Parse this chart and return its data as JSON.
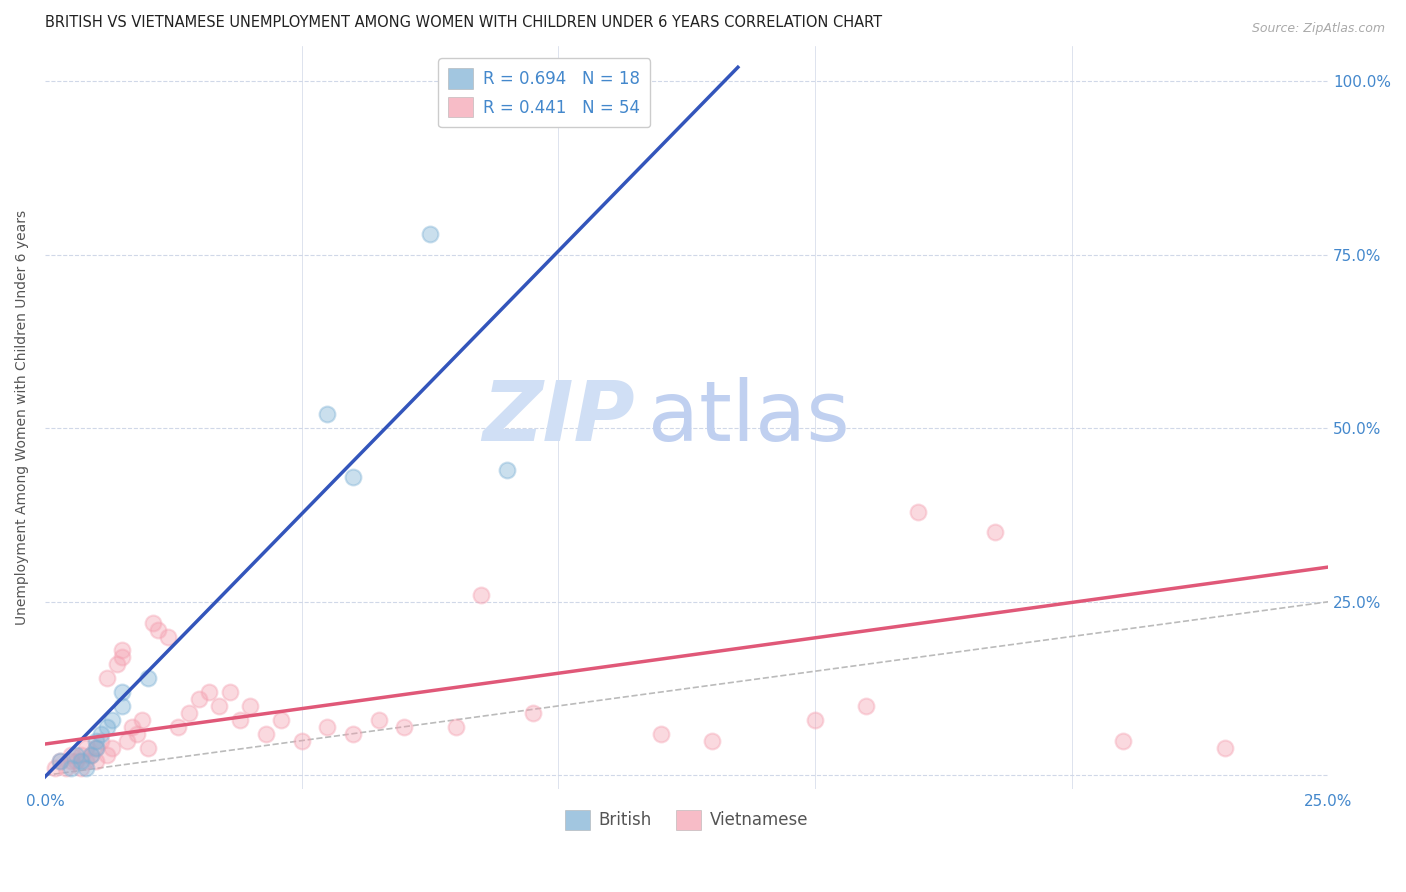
{
  "title": "BRITISH VS VIETNAMESE UNEMPLOYMENT AMONG WOMEN WITH CHILDREN UNDER 6 YEARS CORRELATION CHART",
  "source": "Source: ZipAtlas.com",
  "ylabel": "Unemployment Among Women with Children Under 6 years",
  "xlabel": "",
  "xlim": [
    0.0,
    0.25
  ],
  "ylim": [
    -0.02,
    1.05
  ],
  "xticks": [
    0.0,
    0.05,
    0.1,
    0.15,
    0.2,
    0.25
  ],
  "xticklabels": [
    "0.0%",
    "",
    "",
    "",
    "",
    "25.0%"
  ],
  "ytick_positions": [
    0.0,
    0.25,
    0.5,
    0.75,
    1.0
  ],
  "yticklabels_right": [
    "",
    "25.0%",
    "50.0%",
    "75.0%",
    "100.0%"
  ],
  "british_color": "#7bafd4",
  "vietnamese_color": "#f4a0b0",
  "british_R": 0.694,
  "british_N": 18,
  "vietnamese_R": 0.441,
  "vietnamese_N": 54,
  "diagonal_color": "#bbbbbb",
  "british_line_color": "#3355bb",
  "vietnamese_line_color": "#e05878",
  "british_line_x0": -0.005,
  "british_line_y0": -0.04,
  "british_line_x1": 0.135,
  "british_line_y1": 1.02,
  "vietnamese_line_x0": -0.005,
  "vietnamese_line_y0": 0.04,
  "vietnamese_line_x1": 0.25,
  "vietnamese_line_y1": 0.3,
  "british_scatter_x": [
    0.003,
    0.005,
    0.006,
    0.007,
    0.008,
    0.009,
    0.01,
    0.01,
    0.011,
    0.012,
    0.013,
    0.015,
    0.015,
    0.02,
    0.055,
    0.06,
    0.075,
    0.09
  ],
  "british_scatter_y": [
    0.02,
    0.01,
    0.03,
    0.02,
    0.01,
    0.03,
    0.04,
    0.05,
    0.06,
    0.07,
    0.08,
    0.1,
    0.12,
    0.14,
    0.52,
    0.43,
    0.78,
    0.44
  ],
  "vietnamese_scatter_x": [
    0.002,
    0.003,
    0.004,
    0.005,
    0.005,
    0.006,
    0.007,
    0.007,
    0.008,
    0.008,
    0.009,
    0.01,
    0.01,
    0.011,
    0.012,
    0.012,
    0.013,
    0.014,
    0.015,
    0.015,
    0.016,
    0.017,
    0.018,
    0.019,
    0.02,
    0.021,
    0.022,
    0.024,
    0.026,
    0.028,
    0.03,
    0.032,
    0.034,
    0.036,
    0.038,
    0.04,
    0.043,
    0.046,
    0.05,
    0.055,
    0.06,
    0.065,
    0.07,
    0.08,
    0.085,
    0.095,
    0.12,
    0.13,
    0.15,
    0.16,
    0.17,
    0.185,
    0.21,
    0.23
  ],
  "vietnamese_scatter_y": [
    0.01,
    0.02,
    0.01,
    0.02,
    0.03,
    0.02,
    0.01,
    0.03,
    0.02,
    0.04,
    0.03,
    0.02,
    0.04,
    0.05,
    0.03,
    0.14,
    0.04,
    0.16,
    0.17,
    0.18,
    0.05,
    0.07,
    0.06,
    0.08,
    0.04,
    0.22,
    0.21,
    0.2,
    0.07,
    0.09,
    0.11,
    0.12,
    0.1,
    0.12,
    0.08,
    0.1,
    0.06,
    0.08,
    0.05,
    0.07,
    0.06,
    0.08,
    0.07,
    0.07,
    0.26,
    0.09,
    0.06,
    0.05,
    0.08,
    0.1,
    0.38,
    0.35,
    0.05,
    0.04
  ],
  "marker_size": 130,
  "marker_alpha": 0.4,
  "title_fontsize": 10.5,
  "axis_label_fontsize": 10,
  "tick_fontsize": 11,
  "legend_fontsize": 12,
  "watermark_zip_color": "#d0dff5",
  "watermark_atlas_color": "#c0d0f0",
  "watermark_fontsize": 60,
  "background_color": "#ffffff",
  "grid_color": "#d0d8e8",
  "axis_color": "#4488cc"
}
